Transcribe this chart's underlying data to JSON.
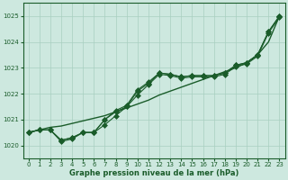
{
  "xlabel": "Graphe pression niveau de la mer (hPa)",
  "xlim": [
    -0.5,
    23.5
  ],
  "ylim": [
    1019.5,
    1025.5
  ],
  "yticks": [
    1020,
    1021,
    1022,
    1023,
    1024,
    1025
  ],
  "xticks": [
    0,
    1,
    2,
    3,
    4,
    5,
    6,
    7,
    8,
    9,
    10,
    11,
    12,
    13,
    14,
    15,
    16,
    17,
    18,
    19,
    20,
    21,
    22,
    23
  ],
  "background_color": "#cde8df",
  "grid_color": "#a8cfc0",
  "line_color": "#1a5c2a",
  "series1": [
    1020.5,
    1020.6,
    1020.6,
    1020.2,
    1020.3,
    1020.5,
    1020.5,
    1021.0,
    1021.3,
    1021.5,
    1022.1,
    1022.4,
    1022.8,
    1022.75,
    1022.65,
    1022.7,
    1022.7,
    1022.7,
    1022.8,
    1023.1,
    1023.2,
    1023.5,
    1024.4,
    1025.0
  ],
  "series2": [
    1020.5,
    1020.6,
    1020.6,
    1020.15,
    1020.25,
    1020.5,
    1020.5,
    1020.8,
    1021.15,
    1021.5,
    1021.95,
    1022.35,
    1022.75,
    1022.7,
    1022.6,
    1022.65,
    1022.65,
    1022.65,
    1022.75,
    1023.05,
    1023.15,
    1023.45,
    1024.35,
    1024.95
  ],
  "series3": [
    1020.5,
    1020.6,
    1020.6,
    1020.2,
    1020.3,
    1020.5,
    1020.5,
    1021.0,
    1021.35,
    1021.55,
    1022.15,
    1022.45,
    1022.8,
    1022.75,
    1022.65,
    1022.7,
    1022.7,
    1022.7,
    1022.8,
    1023.1,
    1023.2,
    1023.5,
    1024.4,
    1025.0
  ],
  "series_smooth": [
    1020.5,
    1020.6,
    1020.7,
    1020.75,
    1020.85,
    1020.95,
    1021.05,
    1021.15,
    1021.3,
    1021.45,
    1021.6,
    1021.75,
    1021.95,
    1022.1,
    1022.25,
    1022.4,
    1022.55,
    1022.7,
    1022.85,
    1023.0,
    1023.2,
    1023.5,
    1024.0,
    1025.0
  ],
  "markersize": 3,
  "linewidth": 0.8,
  "xlabel_fontsize": 6.0,
  "tick_fontsize": 5.0
}
